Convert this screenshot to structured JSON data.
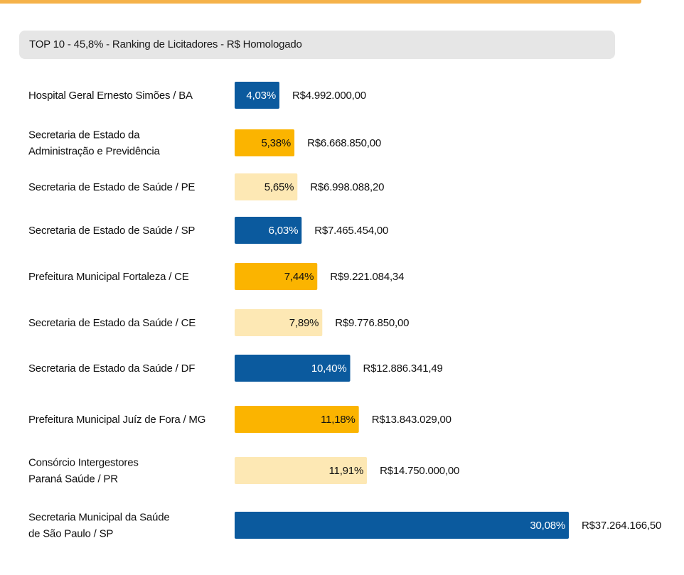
{
  "title": "TOP 10 - 45,8% - Ranking de Licitadores - R$ Homologado",
  "colors": {
    "dark_blue": "#0b5a9e",
    "orange": "#fbb400",
    "light_orange": "#fde8b4",
    "rule": "#f5b24a",
    "title_bg": "#e6e6e6"
  },
  "chart_data": {
    "type": "bar",
    "orientation": "horizontal",
    "title": "TOP 10 - 45,8% - Ranking de Licitadores - R$ Homologado",
    "categories": [
      [
        "Hospital Geral Ernesto Simões / BA"
      ],
      [
        "Secretaria de Estado da",
        "Administração e Previdência"
      ],
      [
        "Secretaria de Estado de Saúde / PE"
      ],
      [
        "Secretaria de Estado de Saúde / SP"
      ],
      [
        "Prefeitura Municipal Fortaleza / CE"
      ],
      [
        "Secretaria de Estado da Saúde / CE"
      ],
      [
        "Secretaria de Estado da Saúde / DF"
      ],
      [
        "Prefeitura Municipal Juíz de Fora / MG"
      ],
      [
        "Consórcio Intergestores",
        "Paraná Saúde / PR"
      ],
      [
        "Secretaria Municipal da Saúde",
        "de São Paulo / SP"
      ]
    ],
    "values": [
      4.03,
      5.38,
      5.65,
      6.03,
      7.44,
      7.89,
      10.4,
      11.18,
      11.91,
      30.08
    ],
    "percent_labels": [
      "4,03%",
      "5,38%",
      "5,65%",
      "6,03%",
      "7,44%",
      "7,89%",
      "10,40%",
      "11,18%",
      "11,91%",
      "30,08%"
    ],
    "amount_labels": [
      "R$4.992.000,00",
      "R$6.668.850,00",
      "R$6.998.088,20",
      "R$7.465.454,00",
      "R$9.221.084,34",
      "R$9.776.850,00",
      "R$12.886.341,49",
      "R$13.843.029,00",
      "R$14.750.000,00",
      "R$37.264.166,50"
    ],
    "bar_colors": [
      "#0b5a9e",
      "#fbb400",
      "#fde8b4",
      "#0b5a9e",
      "#fbb400",
      "#fde8b4",
      "#0b5a9e",
      "#fbb400",
      "#fde8b4",
      "#0b5a9e"
    ],
    "percent_text_colors": [
      "#ffffff",
      "#111111",
      "#111111",
      "#ffffff",
      "#111111",
      "#111111",
      "#ffffff",
      "#111111",
      "#111111",
      "#ffffff"
    ],
    "xlim": [
      0,
      30.08
    ],
    "grid": false,
    "legend": "none"
  }
}
